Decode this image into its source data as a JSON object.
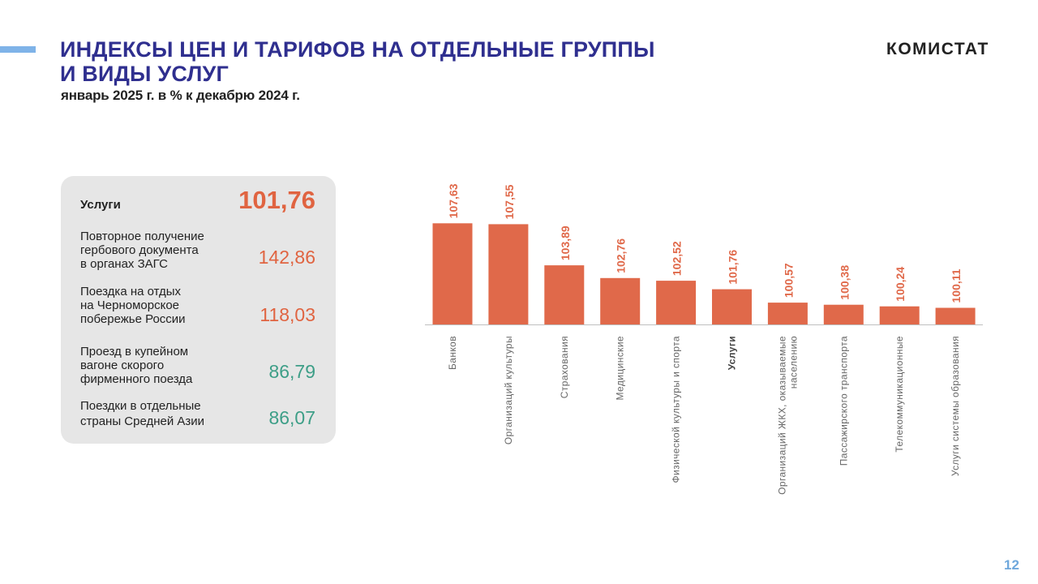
{
  "header": {
    "title_line1": "ИНДЕКСЫ ЦЕН И ТАРИФОВ НА ОТДЕЛЬНЫЕ ГРУППЫ",
    "title_line2": "И ВИДЫ УСЛУГ",
    "subtitle": "январь 2025 г. в % к декабрю 2024 г.",
    "logo": "КОМИСТАТ"
  },
  "panel": {
    "main": {
      "label": "Услуги",
      "value": "101,76"
    },
    "items": [
      {
        "label_lines": [
          "Повторное получение",
          "гербового документа",
          "в органах ЗАГС"
        ],
        "value": "142,86",
        "trend": "up"
      },
      {
        "label_lines": [
          "Поездка на отдых",
          "на Черноморское",
          "побережье России"
        ],
        "value": "118,03",
        "trend": "up"
      },
      {
        "label_lines": [
          "Проезд в купейном",
          "вагоне скорого",
          "фирменного поезда"
        ],
        "value": "86,79",
        "trend": "down"
      },
      {
        "label_lines": [
          "Поездки в отдельные",
          "страны Средней Азии"
        ],
        "value": "86,07",
        "trend": "down"
      }
    ]
  },
  "chart_data": {
    "type": "bar",
    "categories": [
      [
        "Банков"
      ],
      [
        "Организаций культуры"
      ],
      [
        "Страхования"
      ],
      [
        "Медицинские"
      ],
      [
        "Физической культуры и спорта"
      ],
      [
        "Услуги"
      ],
      [
        "Организаций ЖКХ, оказываемые",
        "населению"
      ],
      [
        "Пассажирского транспорта"
      ],
      [
        "Телекоммуникационные"
      ],
      [
        "Услуги системы образования"
      ]
    ],
    "values": [
      107.63,
      107.55,
      103.89,
      102.76,
      102.52,
      101.76,
      100.57,
      100.38,
      100.24,
      100.11
    ],
    "value_labels": [
      "107,63",
      "107,55",
      "103,89",
      "102,76",
      "102,52",
      "101,76",
      "100,57",
      "100,38",
      "100,24",
      "100,11"
    ],
    "highlight": "Услуги",
    "title": "",
    "xlabel": "",
    "ylabel": "",
    "bar_color": "#e0694a"
  },
  "footer": {
    "page_number": "12"
  }
}
